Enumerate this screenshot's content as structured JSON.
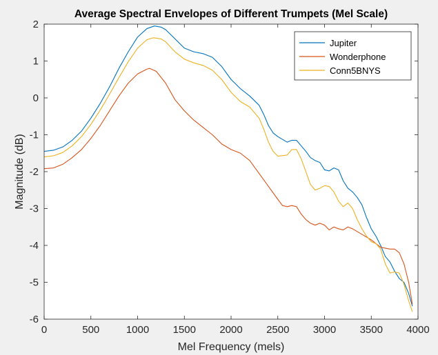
{
  "chart_data": {
    "type": "line",
    "title": "Average Spectral Envelopes of Different Trumpets (Mel Scale)",
    "xlabel": "Mel Frequency (mels)",
    "ylabel": "Magnitude (dB)",
    "xlim": [
      0,
      4000
    ],
    "ylim": [
      -6,
      2
    ],
    "xticks": [
      0,
      500,
      1000,
      1500,
      2000,
      2500,
      3000,
      3500,
      4000
    ],
    "yticks": [
      -6,
      -5,
      -4,
      -3,
      -2,
      -1,
      0,
      1,
      2
    ],
    "grid": false,
    "legend_position": "top-right",
    "series": [
      {
        "name": "Jupiter",
        "color": "#0072BD",
        "points": [
          [
            0,
            -1.45
          ],
          [
            100,
            -1.42
          ],
          [
            200,
            -1.33
          ],
          [
            300,
            -1.15
          ],
          [
            400,
            -0.9
          ],
          [
            500,
            -0.55
          ],
          [
            600,
            -0.15
          ],
          [
            700,
            0.3
          ],
          [
            800,
            0.8
          ],
          [
            900,
            1.25
          ],
          [
            1000,
            1.65
          ],
          [
            1100,
            1.88
          ],
          [
            1180,
            1.95
          ],
          [
            1250,
            1.92
          ],
          [
            1300,
            1.85
          ],
          [
            1400,
            1.6
          ],
          [
            1500,
            1.35
          ],
          [
            1600,
            1.25
          ],
          [
            1700,
            1.2
          ],
          [
            1800,
            1.1
          ],
          [
            1900,
            0.85
          ],
          [
            2000,
            0.5
          ],
          [
            2100,
            0.25
          ],
          [
            2200,
            0.05
          ],
          [
            2300,
            -0.2
          ],
          [
            2350,
            -0.45
          ],
          [
            2400,
            -0.75
          ],
          [
            2450,
            -0.95
          ],
          [
            2500,
            -1.05
          ],
          [
            2600,
            -1.2
          ],
          [
            2650,
            -1.15
          ],
          [
            2700,
            -1.15
          ],
          [
            2750,
            -1.3
          ],
          [
            2800,
            -1.45
          ],
          [
            2850,
            -1.62
          ],
          [
            2900,
            -1.7
          ],
          [
            2950,
            -1.75
          ],
          [
            3000,
            -1.95
          ],
          [
            3050,
            -1.98
          ],
          [
            3100,
            -1.9
          ],
          [
            3150,
            -1.95
          ],
          [
            3200,
            -2.25
          ],
          [
            3250,
            -2.45
          ],
          [
            3300,
            -2.55
          ],
          [
            3350,
            -2.7
          ],
          [
            3400,
            -2.9
          ],
          [
            3450,
            -3.25
          ],
          [
            3500,
            -3.55
          ],
          [
            3550,
            -3.75
          ],
          [
            3600,
            -4.0
          ],
          [
            3650,
            -4.3
          ],
          [
            3700,
            -4.45
          ],
          [
            3750,
            -4.7
          ],
          [
            3800,
            -4.9
          ],
          [
            3850,
            -5.0
          ],
          [
            3900,
            -5.3
          ],
          [
            3940,
            -5.65
          ]
        ]
      },
      {
        "name": "Wonderphone",
        "color": "#D95319",
        "points": [
          [
            0,
            -1.92
          ],
          [
            100,
            -1.9
          ],
          [
            200,
            -1.8
          ],
          [
            300,
            -1.62
          ],
          [
            400,
            -1.4
          ],
          [
            500,
            -1.1
          ],
          [
            600,
            -0.75
          ],
          [
            700,
            -0.35
          ],
          [
            800,
            0.05
          ],
          [
            900,
            0.4
          ],
          [
            1000,
            0.65
          ],
          [
            1100,
            0.78
          ],
          [
            1130,
            0.8
          ],
          [
            1200,
            0.72
          ],
          [
            1300,
            0.4
          ],
          [
            1400,
            -0.05
          ],
          [
            1500,
            -0.35
          ],
          [
            1600,
            -0.6
          ],
          [
            1700,
            -0.8
          ],
          [
            1800,
            -1.0
          ],
          [
            1900,
            -1.25
          ],
          [
            2000,
            -1.4
          ],
          [
            2100,
            -1.5
          ],
          [
            2200,
            -1.7
          ],
          [
            2300,
            -2.05
          ],
          [
            2400,
            -2.4
          ],
          [
            2500,
            -2.75
          ],
          [
            2550,
            -2.92
          ],
          [
            2600,
            -2.95
          ],
          [
            2650,
            -2.92
          ],
          [
            2700,
            -2.95
          ],
          [
            2750,
            -3.15
          ],
          [
            2800,
            -3.3
          ],
          [
            2850,
            -3.4
          ],
          [
            2900,
            -3.45
          ],
          [
            2950,
            -3.4
          ],
          [
            3000,
            -3.45
          ],
          [
            3050,
            -3.58
          ],
          [
            3100,
            -3.5
          ],
          [
            3150,
            -3.55
          ],
          [
            3200,
            -3.58
          ],
          [
            3250,
            -3.5
          ],
          [
            3300,
            -3.55
          ],
          [
            3400,
            -3.7
          ],
          [
            3500,
            -3.85
          ],
          [
            3600,
            -4.05
          ],
          [
            3700,
            -4.1
          ],
          [
            3750,
            -4.1
          ],
          [
            3800,
            -4.2
          ],
          [
            3850,
            -4.5
          ],
          [
            3900,
            -5.0
          ],
          [
            3940,
            -5.6
          ]
        ]
      },
      {
        "name": "Conn5BNYS",
        "color": "#EDB120",
        "points": [
          [
            0,
            -1.6
          ],
          [
            100,
            -1.57
          ],
          [
            200,
            -1.48
          ],
          [
            300,
            -1.3
          ],
          [
            400,
            -1.05
          ],
          [
            500,
            -0.72
          ],
          [
            600,
            -0.33
          ],
          [
            700,
            0.1
          ],
          [
            800,
            0.55
          ],
          [
            900,
            0.98
          ],
          [
            1000,
            1.35
          ],
          [
            1100,
            1.58
          ],
          [
            1170,
            1.63
          ],
          [
            1250,
            1.6
          ],
          [
            1300,
            1.52
          ],
          [
            1400,
            1.25
          ],
          [
            1500,
            1.05
          ],
          [
            1600,
            0.95
          ],
          [
            1700,
            0.88
          ],
          [
            1800,
            0.75
          ],
          [
            1900,
            0.5
          ],
          [
            2000,
            0.15
          ],
          [
            2100,
            -0.1
          ],
          [
            2200,
            -0.25
          ],
          [
            2300,
            -0.55
          ],
          [
            2350,
            -0.85
          ],
          [
            2400,
            -1.2
          ],
          [
            2450,
            -1.45
          ],
          [
            2500,
            -1.58
          ],
          [
            2600,
            -1.55
          ],
          [
            2650,
            -1.4
          ],
          [
            2700,
            -1.4
          ],
          [
            2750,
            -1.65
          ],
          [
            2800,
            -2.0
          ],
          [
            2850,
            -2.35
          ],
          [
            2900,
            -2.5
          ],
          [
            2950,
            -2.45
          ],
          [
            3000,
            -2.38
          ],
          [
            3050,
            -2.4
          ],
          [
            3100,
            -2.55
          ],
          [
            3150,
            -2.8
          ],
          [
            3200,
            -2.95
          ],
          [
            3250,
            -2.85
          ],
          [
            3300,
            -3.0
          ],
          [
            3350,
            -3.3
          ],
          [
            3400,
            -3.55
          ],
          [
            3450,
            -3.75
          ],
          [
            3500,
            -3.9
          ],
          [
            3550,
            -3.95
          ],
          [
            3600,
            -4.1
          ],
          [
            3650,
            -4.5
          ],
          [
            3700,
            -4.75
          ],
          [
            3750,
            -4.72
          ],
          [
            3800,
            -4.75
          ],
          [
            3850,
            -5.05
          ],
          [
            3900,
            -5.5
          ],
          [
            3940,
            -5.8
          ]
        ]
      }
    ]
  }
}
